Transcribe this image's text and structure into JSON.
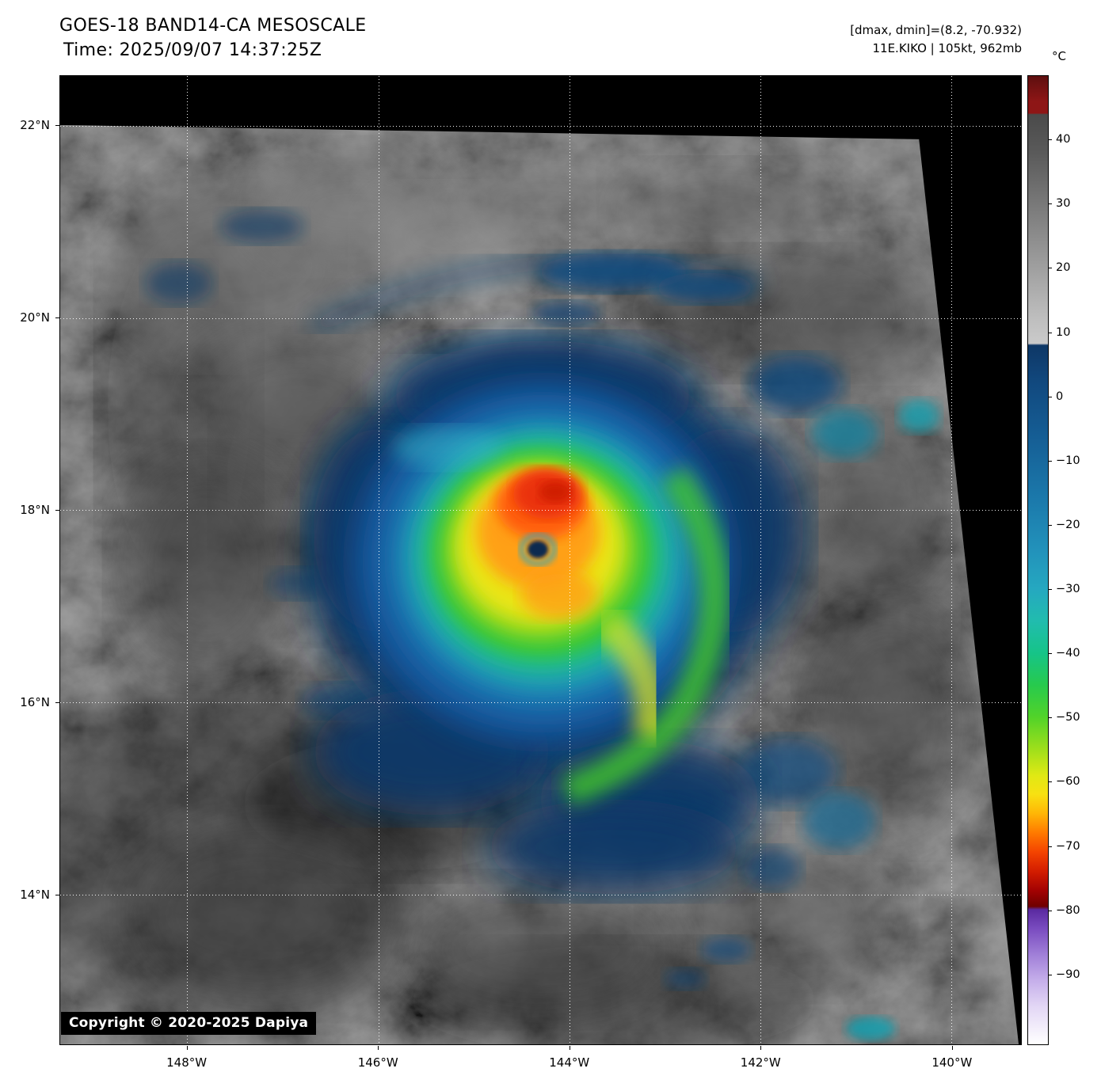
{
  "header": {
    "title": "GOES-18 BAND14-CA MESOSCALE",
    "time": "Time: 2025/09/07 14:37:25Z",
    "dmax_dmin": "[dmax, dmin]=(8.2, -70.932)",
    "storm_info": "11E.KIKO | 105kt, 962mb"
  },
  "footer": {
    "copyright": "Copyright © 2020-2025 Dapiya"
  },
  "colorbar": {
    "unit": "°C",
    "domain": [
      50,
      -101
    ],
    "ticks": [
      {
        "value": 40,
        "label": "40"
      },
      {
        "value": 30,
        "label": "30"
      },
      {
        "value": 20,
        "label": "20"
      },
      {
        "value": 10,
        "label": "10"
      },
      {
        "value": 0,
        "label": "0"
      },
      {
        "value": -10,
        "label": "−10"
      },
      {
        "value": -20,
        "label": "−20"
      },
      {
        "value": -30,
        "label": "−30"
      },
      {
        "value": -40,
        "label": "−40"
      },
      {
        "value": -50,
        "label": "−50"
      },
      {
        "value": -60,
        "label": "−60"
      },
      {
        "value": -70,
        "label": "−70"
      },
      {
        "value": -80,
        "label": "−80"
      },
      {
        "value": -90,
        "label": "−90"
      }
    ],
    "stops": [
      {
        "value": 50,
        "color": "#5e0f0f"
      },
      {
        "value": 46,
        "color": "#8e1616"
      },
      {
        "value": 44.2,
        "color": "#8e1616"
      },
      {
        "value": 44,
        "color": "#4a4a4a"
      },
      {
        "value": 38,
        "color": "#5a5a5a"
      },
      {
        "value": 25,
        "color": "#8c8c8c"
      },
      {
        "value": 12,
        "color": "#bfbfbf"
      },
      {
        "value": 8.3,
        "color": "#cacaca"
      },
      {
        "value": 8,
        "color": "#0e3766"
      },
      {
        "value": 2,
        "color": "#11497f"
      },
      {
        "value": -6,
        "color": "#155d94"
      },
      {
        "value": -16,
        "color": "#1b79ab"
      },
      {
        "value": -24,
        "color": "#2292bb"
      },
      {
        "value": -30,
        "color": "#25a8c0"
      },
      {
        "value": -35,
        "color": "#21bcae"
      },
      {
        "value": -40,
        "color": "#16c488"
      },
      {
        "value": -45,
        "color": "#27ca4d"
      },
      {
        "value": -50,
        "color": "#52d329"
      },
      {
        "value": -55,
        "color": "#9fdf1b"
      },
      {
        "value": -59,
        "color": "#dfe914"
      },
      {
        "value": -62,
        "color": "#f8e112"
      },
      {
        "value": -65,
        "color": "#ffb606"
      },
      {
        "value": -68,
        "color": "#ff7a00"
      },
      {
        "value": -71,
        "color": "#f44400"
      },
      {
        "value": -74,
        "color": "#d31d00"
      },
      {
        "value": -77,
        "color": "#a30202"
      },
      {
        "value": -79.5,
        "color": "#6f0000"
      },
      {
        "value": -80,
        "color": "#5a2aa0"
      },
      {
        "value": -83,
        "color": "#7a4cc0"
      },
      {
        "value": -87,
        "color": "#a07fd8"
      },
      {
        "value": -91,
        "color": "#c5aeea"
      },
      {
        "value": -95,
        "color": "#e2d6f5"
      },
      {
        "value": -101,
        "color": "#ffffff"
      }
    ]
  },
  "axes": {
    "lat": {
      "domain": [
        22.52,
        12.44
      ],
      "ticks": [
        {
          "value": 22,
          "label": "22°N"
        },
        {
          "value": 20,
          "label": "20°N"
        },
        {
          "value": 18,
          "label": "18°N"
        },
        {
          "value": 16,
          "label": "16°N"
        },
        {
          "value": 14,
          "label": "14°N"
        }
      ]
    },
    "lon": {
      "domain": [
        -149.33,
        -139.27
      ],
      "ticks": [
        {
          "value": -148,
          "label": "148°W"
        },
        {
          "value": -146,
          "label": "146°W"
        },
        {
          "value": -144,
          "label": "144°W"
        },
        {
          "value": -142,
          "label": "142°W"
        },
        {
          "value": -140,
          "label": "140°W"
        }
      ]
    }
  },
  "map_data": {
    "type": "satellite-ir-image",
    "satellite": "GOES-18",
    "band": "BAND14",
    "sector": "CA MESOSCALE",
    "storm": {
      "designation": "11E",
      "name": "KIKO",
      "intensity_kt": 105,
      "pressure_mb": 962
    },
    "dmax_c": 8.2,
    "dmin_c": -70.932,
    "eye_position_read_from_grid": {
      "lat": 17.6,
      "lon": -144.35
    }
  }
}
